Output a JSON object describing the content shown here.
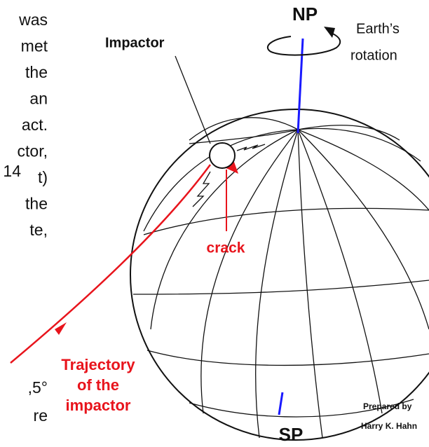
{
  "left_text": {
    "lines": [
      "was",
      "met",
      "the",
      "an",
      "act.",
      "ctor,"
    ],
    "exponent": "14",
    "exponent_tail": "t)",
    "lines_after": [
      "the",
      "te,"
    ],
    "bottom_lines": [
      ",5°",
      "re"
    ]
  },
  "labels": {
    "north_pole": "NP",
    "south_pole": "SP",
    "rotation": [
      "Earth’s",
      "rotation"
    ],
    "impactor": "Impactor",
    "crack": "crack",
    "trajectory": [
      "Trajectory",
      "of the",
      "impactor"
    ],
    "credit": [
      "Prepared by",
      "Harry K. Hahn"
    ]
  }
}
